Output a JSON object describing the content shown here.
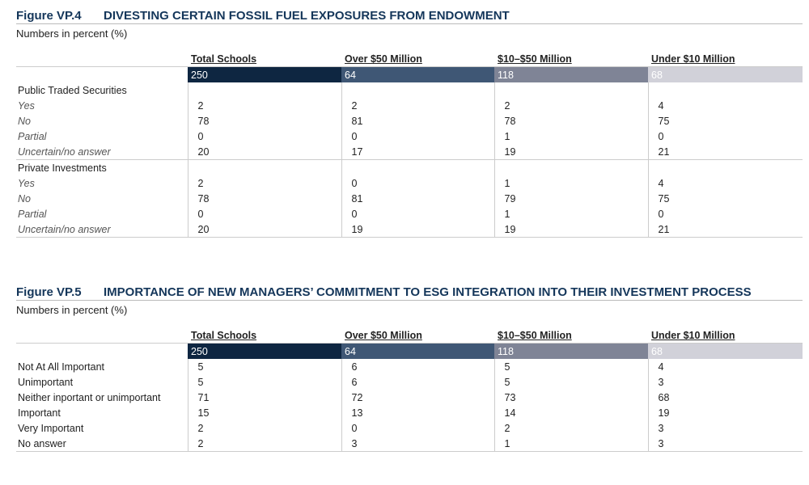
{
  "figures": [
    {
      "label": "Figure VP.4",
      "title": "DIVESTING CERTAIN FOSSIL FUEL EXPOSURES FROM ENDOWMENT",
      "note": "Numbers in percent (%)",
      "columns": [
        "Total Schools",
        "Over $50 Million",
        "$10–$50 Million",
        "Under $10 Million"
      ],
      "counts": [
        250,
        64,
        118,
        68
      ],
      "sections": [
        {
          "heading": "Public Traded Securities",
          "rows": [
            {
              "label": "Yes",
              "values": [
                2,
                2,
                2,
                4
              ]
            },
            {
              "label": "No",
              "values": [
                78,
                81,
                78,
                75
              ]
            },
            {
              "label": "Partial",
              "values": [
                0,
                0,
                1,
                0
              ]
            },
            {
              "label": "Uncertain/no answer",
              "values": [
                20,
                17,
                19,
                21
              ]
            }
          ]
        },
        {
          "heading": "Private Investments",
          "rows": [
            {
              "label": "Yes",
              "values": [
                2,
                0,
                1,
                4
              ]
            },
            {
              "label": "No",
              "values": [
                78,
                81,
                79,
                75
              ]
            },
            {
              "label": "Partial",
              "values": [
                0,
                0,
                1,
                0
              ]
            },
            {
              "label": "Uncertain/no answer",
              "values": [
                20,
                19,
                19,
                21
              ]
            }
          ]
        }
      ]
    },
    {
      "label": "Figure VP.5",
      "title": "IMPORTANCE OF NEW MANAGERS’ COMMITMENT TO ESG INTEGRATION INTO THEIR INVESTMENT PROCESS",
      "note": "Numbers in percent (%)",
      "columns": [
        "Total Schools",
        "Over $50 Million",
        "$10–$50 Million",
        "Under $10 Million"
      ],
      "counts": [
        250,
        64,
        118,
        68
      ],
      "rows": [
        {
          "label": "Not At All Important",
          "values": [
            5,
            6,
            5,
            4
          ]
        },
        {
          "label": "Unimportant",
          "values": [
            5,
            6,
            5,
            3
          ]
        },
        {
          "label": "Neither inportant or unimportant",
          "values": [
            71,
            72,
            73,
            68
          ]
        },
        {
          "label": "Important",
          "values": [
            15,
            13,
            14,
            19
          ]
        },
        {
          "label": "Very Important",
          "values": [
            2,
            0,
            2,
            3
          ]
        },
        {
          "label": "No answer",
          "values": [
            2,
            3,
            1,
            3
          ]
        }
      ]
    }
  ]
}
